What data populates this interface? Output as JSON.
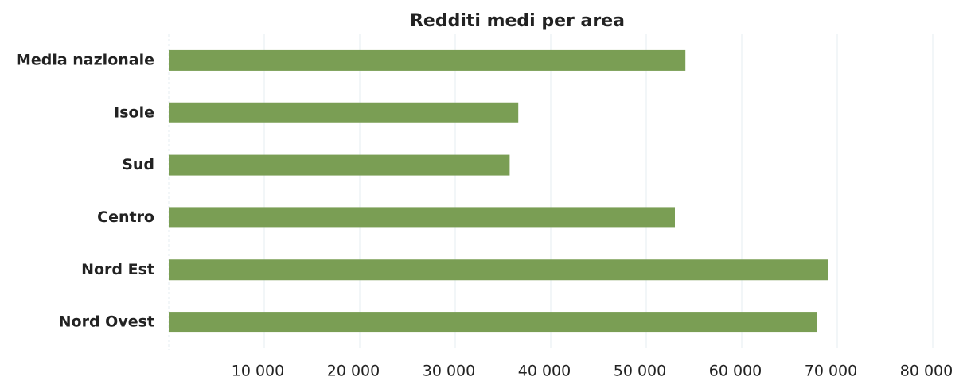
{
  "chart_data": {
    "type": "bar",
    "orientation": "horizontal",
    "title": "Redditi medi per area",
    "categories": [
      "Media nazionale",
      "Isole",
      "Sud",
      "Centro",
      "Nord Est",
      "Nord Ovest"
    ],
    "values": [
      54100,
      36600,
      35700,
      53000,
      69000,
      67900
    ],
    "color": "#7a9e54",
    "xlim": [
      0,
      80000
    ],
    "xticks": [
      {
        "value": 10000,
        "label": "10 000"
      },
      {
        "value": 20000,
        "label": "20 000"
      },
      {
        "value": 30000,
        "label": "30 000"
      },
      {
        "value": 40000,
        "label": "40 000"
      },
      {
        "value": 50000,
        "label": "50 000"
      },
      {
        "value": 60000,
        "label": "60 000"
      },
      {
        "value": 70000,
        "label": "70 000"
      },
      {
        "value": 80000,
        "label": "80 000"
      }
    ],
    "grid": true
  }
}
